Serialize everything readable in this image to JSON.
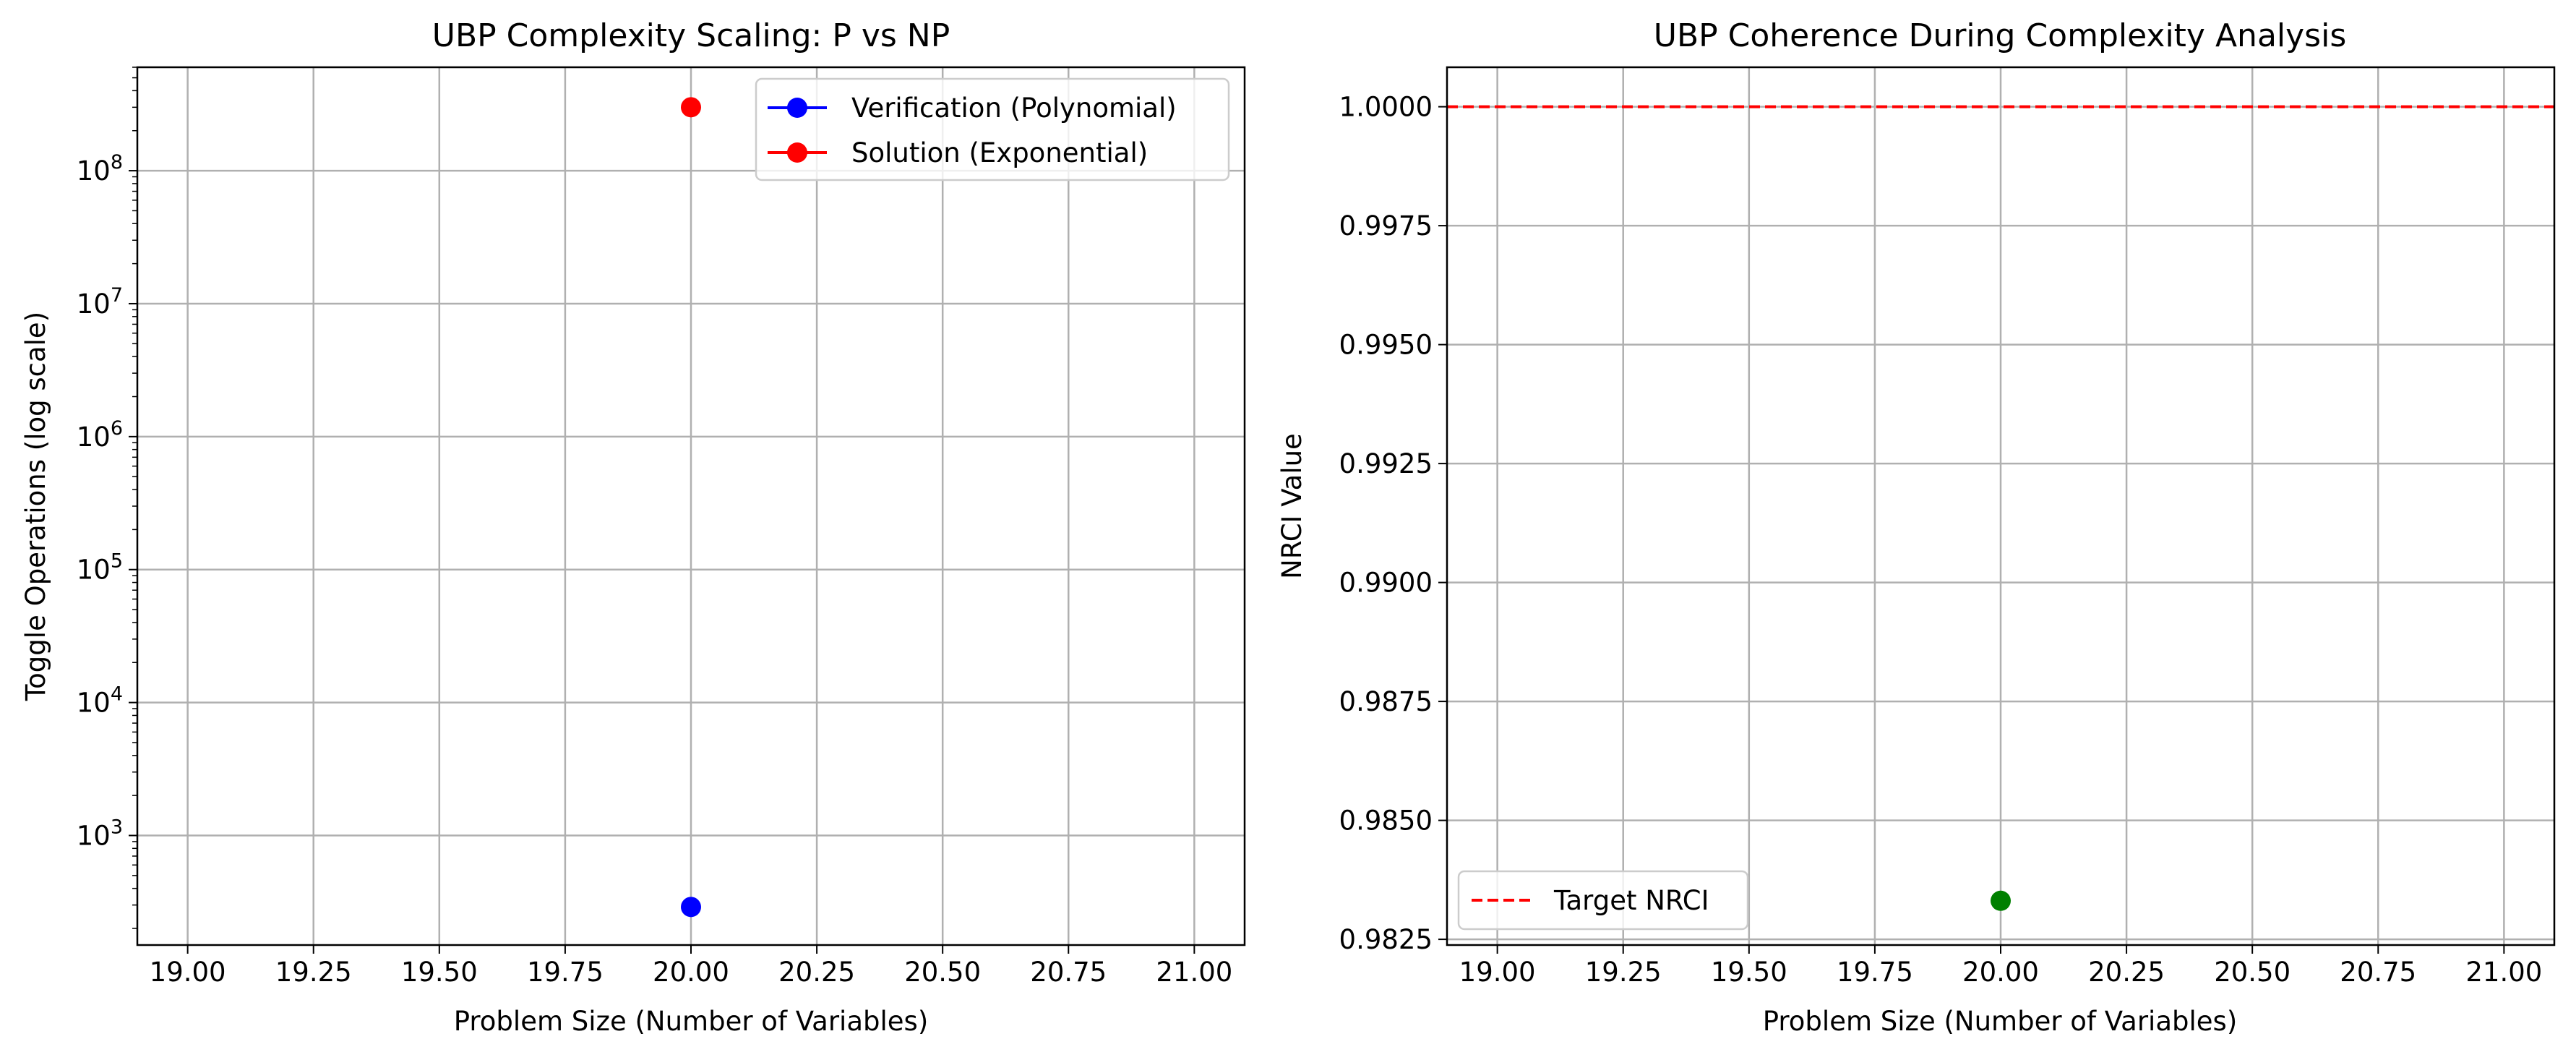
{
  "chart_data": [
    {
      "type": "line",
      "title": "UBP Complexity Scaling: P vs NP",
      "xlabel": "Problem Size (Number of Variables)",
      "ylabel": "Toggle Operations (log scale)",
      "yscale": "log",
      "xlim": [
        18.9,
        21.1
      ],
      "ylim": [
        150,
        600000000
      ],
      "x_ticks": [
        "19.00",
        "19.25",
        "19.50",
        "19.75",
        "20.00",
        "20.25",
        "20.50",
        "20.75",
        "21.00"
      ],
      "y_ticks": [
        {
          "base": "10",
          "exp": "3",
          "value": 1000
        },
        {
          "base": "10",
          "exp": "4",
          "value": 10000
        },
        {
          "base": "10",
          "exp": "5",
          "value": 100000
        },
        {
          "base": "10",
          "exp": "6",
          "value": 1000000
        },
        {
          "base": "10",
          "exp": "7",
          "value": 10000000
        },
        {
          "base": "10",
          "exp": "8",
          "value": 100000000
        }
      ],
      "grid": true,
      "legend_position": "top-right",
      "series": [
        {
          "name": "Verification (Polynomial)",
          "color": "#0000ff",
          "x": [
            20
          ],
          "y": [
            290
          ]
        },
        {
          "name": "Solution (Exponential)",
          "color": "#ff0000",
          "x": [
            20
          ],
          "y": [
            300000000
          ]
        }
      ]
    },
    {
      "type": "line",
      "title": "UBP Coherence During Complexity Analysis",
      "xlabel": "Problem Size (Number of Variables)",
      "ylabel": "NRCI Value",
      "xlim": [
        18.9,
        21.1
      ],
      "ylim": [
        0.98238,
        1.00083
      ],
      "x_ticks": [
        "19.00",
        "19.25",
        "19.50",
        "19.75",
        "20.00",
        "20.25",
        "20.50",
        "20.75",
        "21.00"
      ],
      "y_ticks": [
        "0.9825",
        "0.9850",
        "0.9875",
        "0.9900",
        "0.9925",
        "0.9950",
        "0.9975",
        "1.0000"
      ],
      "grid": true,
      "legend_position": "bottom-left",
      "target_line": {
        "name": "Target NRCI",
        "y": 1.0,
        "color": "#ff0000",
        "style": "dashed"
      },
      "series": [
        {
          "name": "",
          "color": "#008000",
          "x": [
            20
          ],
          "y": [
            0.98331
          ]
        }
      ]
    }
  ]
}
